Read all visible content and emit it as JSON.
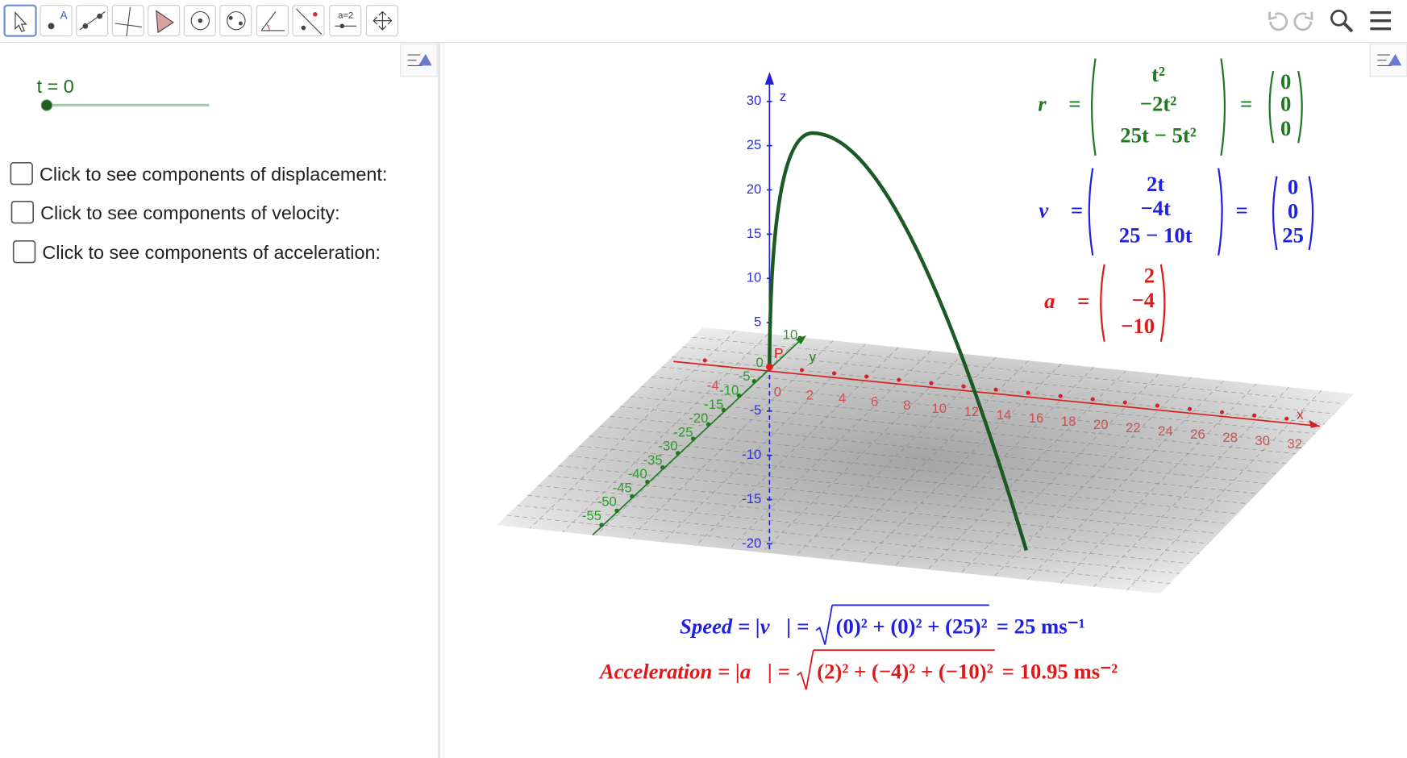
{
  "toolbar": {
    "point_tool_label": "A",
    "slider_tool_label": "a=2"
  },
  "algebra_view": {
    "slider": {
      "label": "t = 0"
    },
    "checkboxes": [
      "Click to see components of displacement:",
      "Click to see components of velocity:",
      "Click to see components of acceleration:"
    ]
  },
  "graphics_view": {
    "axes": {
      "x": {
        "name": "x",
        "ticks": [
          -4,
          0,
          2,
          4,
          6,
          8,
          10,
          12,
          14,
          16,
          18,
          20,
          22,
          24,
          26,
          28,
          30,
          32
        ]
      },
      "y": {
        "name": "y",
        "ticks": [
          10,
          0,
          -5,
          -10,
          -15,
          -20,
          -25,
          -30,
          -35,
          -40,
          -45,
          -50,
          -55
        ]
      },
      "z": {
        "name": "z",
        "ticks": [
          30,
          25,
          20,
          15,
          10,
          5,
          -5,
          -10,
          -15,
          -20
        ]
      }
    },
    "point_label": "P",
    "displacement": {
      "label": "r⃗ =",
      "components": [
        "t²",
        "−2t²",
        "25t − 5t²"
      ],
      "values": [
        0,
        0,
        0
      ]
    },
    "velocity": {
      "label": "v⃗ =",
      "components": [
        "2t",
        "−4t",
        "25 − 10t"
      ],
      "values": [
        0,
        0,
        25
      ]
    },
    "acceleration": {
      "label": "a⃗ =",
      "components": [
        "2",
        "−4",
        "−10"
      ]
    },
    "speed": {
      "lhs": "Speed = |v⃗| =",
      "radicand": "(0)² + (0)² + (25)²",
      "rhs": "= 25 ms⁻¹"
    },
    "acceleration_magnitude": {
      "lhs": "Acceleration = |a⃗| =",
      "radicand": "(2)² + (−4)² + (−10)²",
      "rhs": "= 10.95 ms⁻²"
    }
  }
}
